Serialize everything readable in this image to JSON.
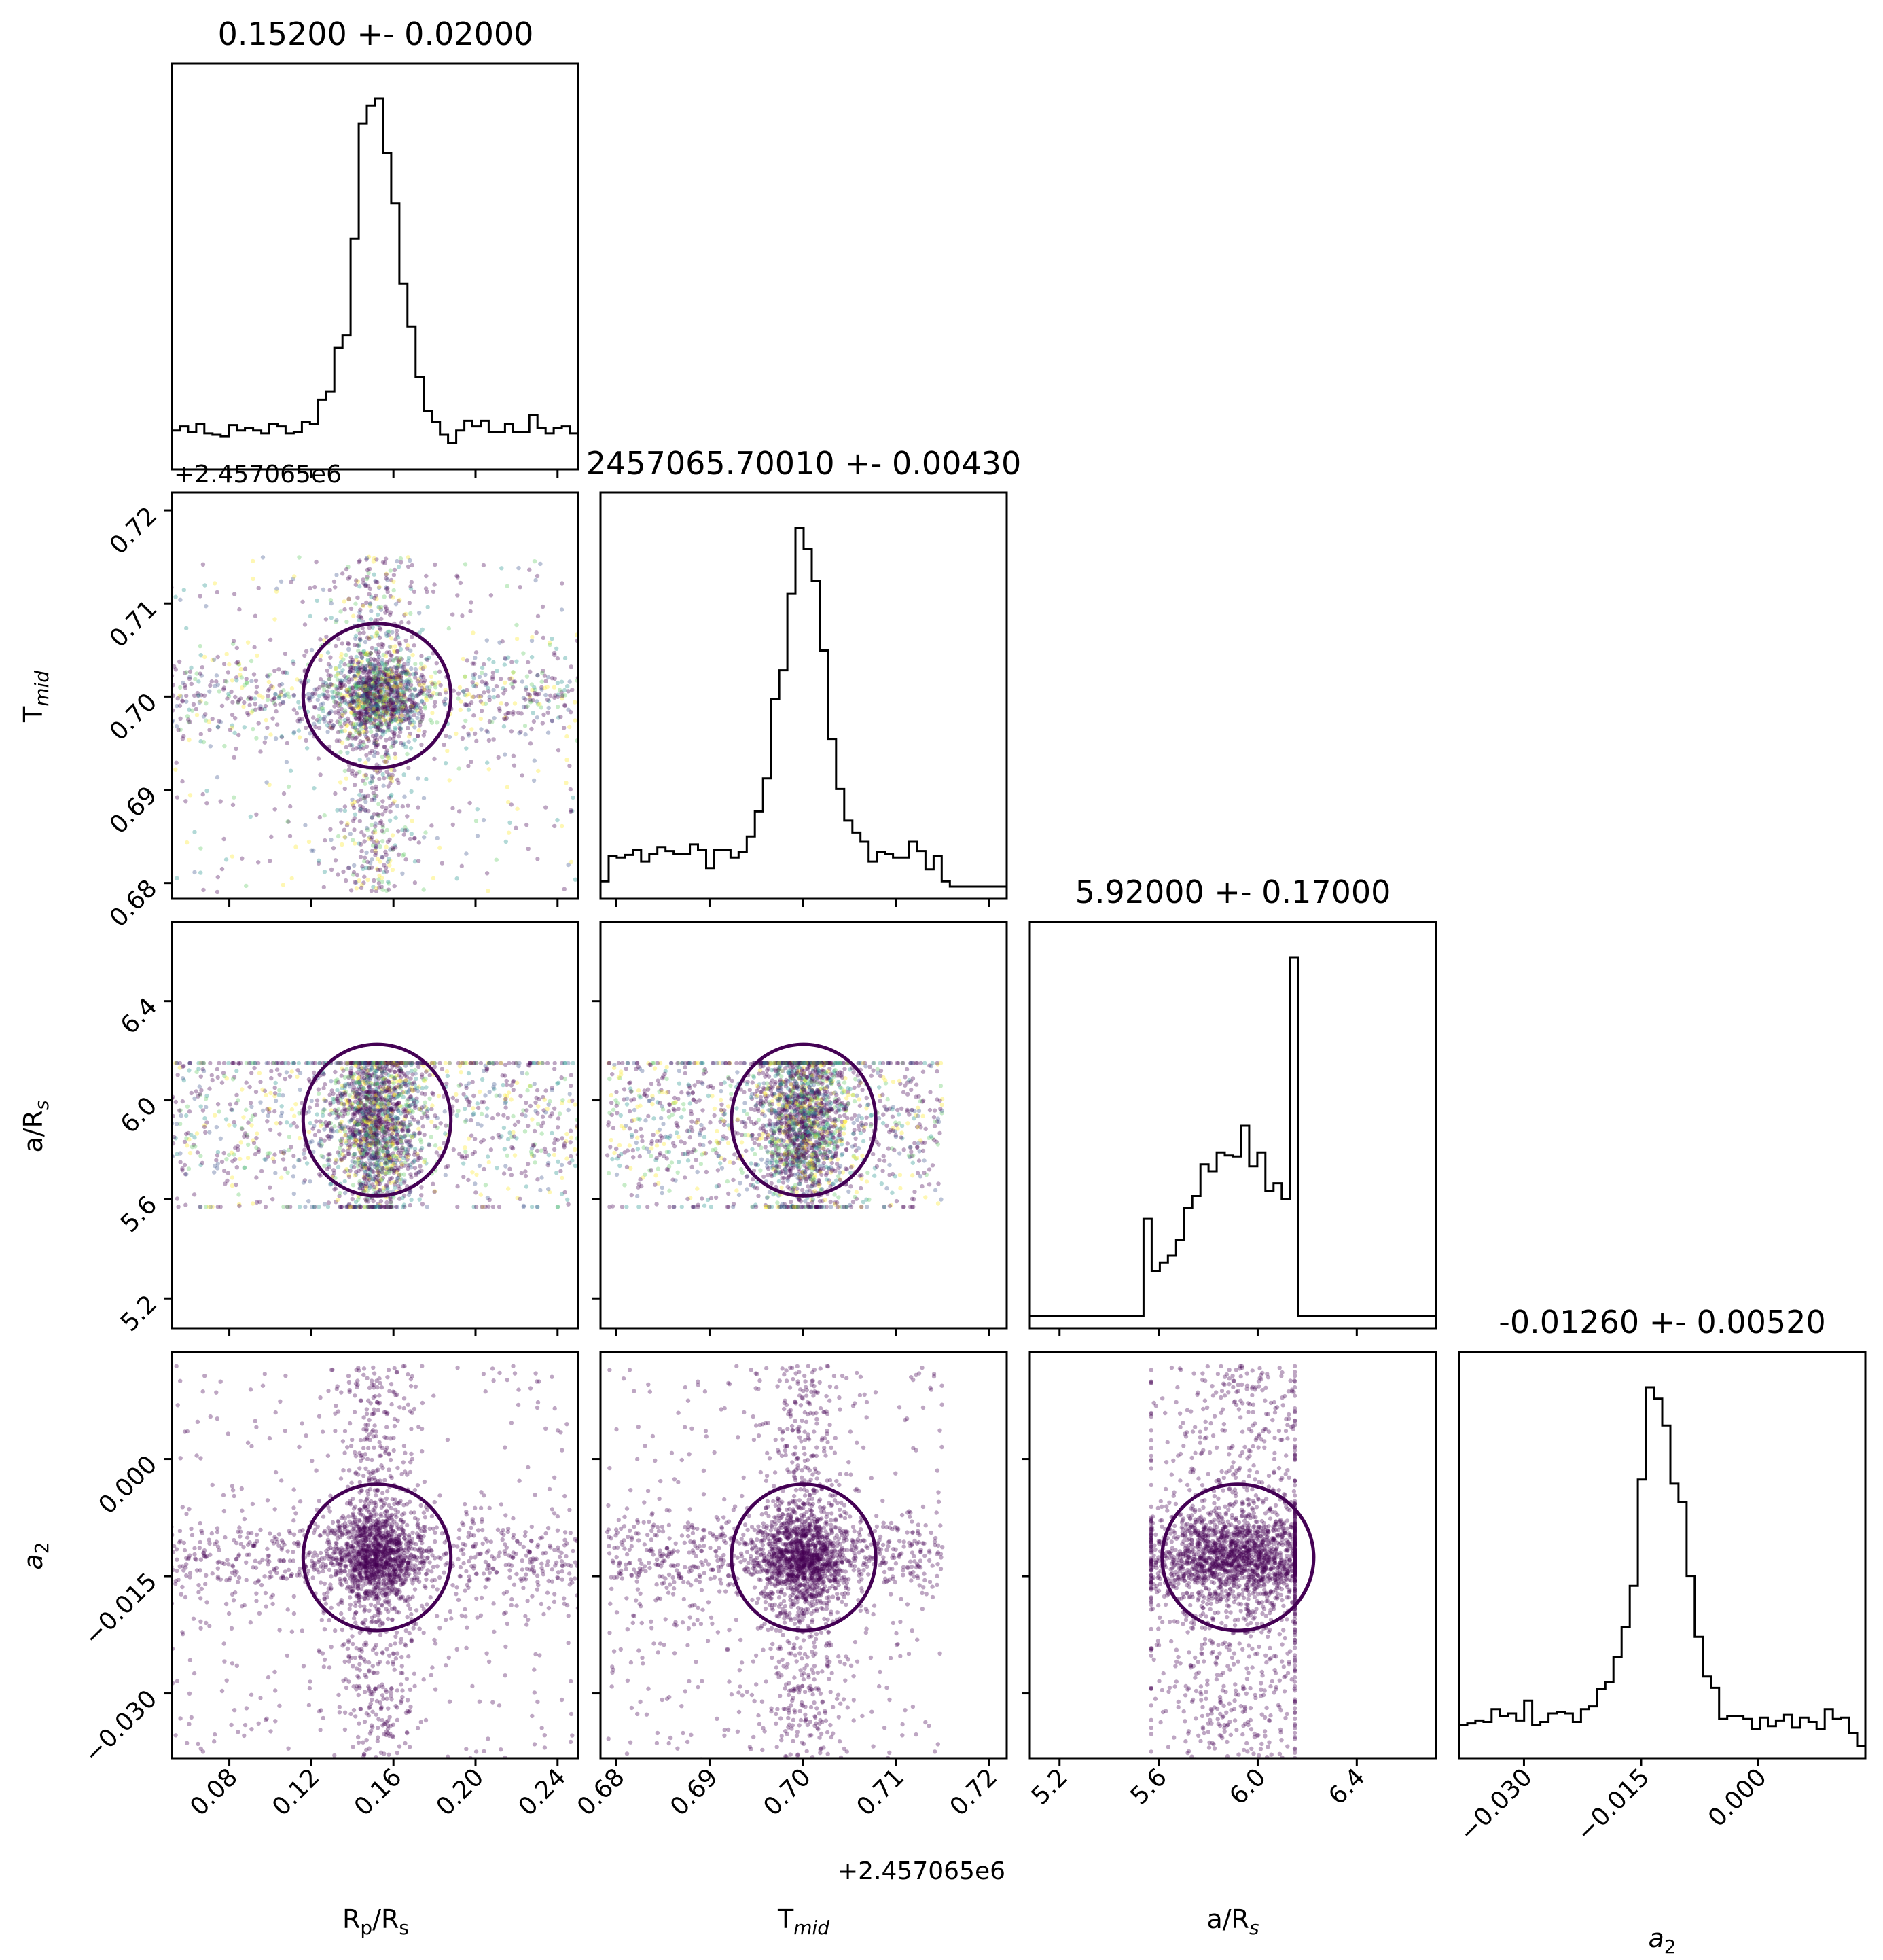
{
  "figure": {
    "type": "corner-plot",
    "parameters": [
      "Rp/Rs",
      "Tmid",
      "a/Rs",
      "a2"
    ]
  },
  "colors": {
    "hist": "#000000",
    "contour": "#440154",
    "points": [
      "#440154",
      "#440154",
      "#440154",
      "#440154",
      "#3b528b",
      "#21918c",
      "#5ec962",
      "#fde725"
    ]
  },
  "chart_data": {
    "type": "corner",
    "titles": [
      "0.15200 +- 0.02000",
      "2457065.70010 +- 0.00430",
      "5.92000 +- 0.17000",
      "-0.01260 +- 0.00520"
    ],
    "axis_labels": {
      "Rp/Rs": {
        "main": "R",
        "sub": "p",
        "rest": "/R",
        "sub2": "s"
      },
      "Tmid": {
        "main": "T",
        "sub": "mid"
      },
      "a/Rs": {
        "main": "a/R",
        "sub": "s"
      },
      "a2": {
        "main": "a",
        "sub": "2"
      }
    },
    "offset_text": "+2.457065e6",
    "ranges": {
      "Rp/Rs": [
        0.052,
        0.25
      ],
      "Tmid": [
        0.6783,
        0.7219
      ],
      "a/Rs": [
        5.08,
        6.72
      ],
      "a2": [
        -0.0383,
        0.0137
      ]
    },
    "ticks": {
      "Rp/Rs": [
        "0.08",
        "0.12",
        "0.16",
        "0.20",
        "0.24"
      ],
      "Tmid": [
        "0.68",
        "0.69",
        "0.70",
        "0.71",
        "0.72"
      ],
      "a/Rs": [
        "5.2",
        "5.6",
        "6.0",
        "6.4"
      ],
      "a2": [
        "−0.030",
        "−0.015",
        "0.000"
      ]
    },
    "tick_values": {
      "Rp/Rs": [
        0.08,
        0.12,
        0.16,
        0.2,
        0.24
      ],
      "Tmid": [
        0.68,
        0.69,
        0.7,
        0.71,
        0.72
      ],
      "a/Rs": [
        5.2,
        5.6,
        6.0,
        6.4
      ],
      "a2": [
        -0.03,
        -0.015,
        0.0
      ]
    },
    "posteriors": {
      "Rp/Rs": {
        "median": 0.152,
        "sigma": 0.02
      },
      "Tmid": {
        "median": 0.7001,
        "sigma": 0.0043
      },
      "a/Rs": {
        "median": 5.92,
        "sigma": 0.17
      },
      "a2": {
        "median": -0.0126,
        "sigma": 0.0052
      }
    },
    "grid": false,
    "legend": "none"
  }
}
